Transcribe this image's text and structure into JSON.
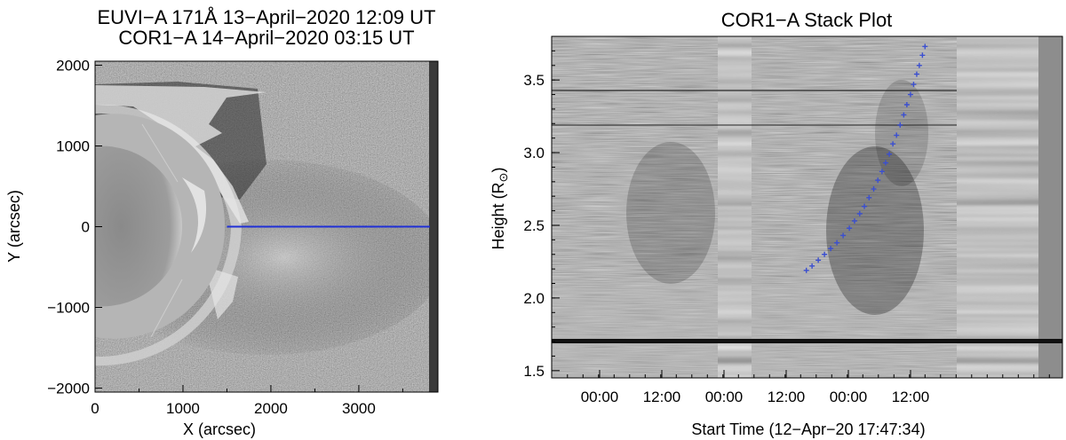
{
  "left_panel": {
    "title_line1": "EUVI−A 171Å 13−April−2020 12:09 UT",
    "title_line2": "COR1−A 14−April−2020 03:15 UT",
    "xlabel": "X (arcsec)",
    "ylabel": "Y (arcsec)",
    "xticks": [
      "0",
      "1000",
      "2000",
      "3000"
    ],
    "yticks": [
      "2000",
      "1000",
      "0",
      "−1000",
      "−2000"
    ],
    "slit_color": "#1f2fd6"
  },
  "right_panel": {
    "title": "COR1−A Stack Plot",
    "xlabel": "Start Time (12−Apr−20 17:47:34)",
    "ylabel": "Height (R",
    "ylabel_symbol": "⊙",
    "ylabel_close": ")",
    "xticks": [
      "00:00",
      "12:00",
      "00:00",
      "12:00",
      "00:00",
      "12:00"
    ],
    "yticks": [
      "3.5",
      "3.0",
      "2.5",
      "2.0",
      "1.5"
    ],
    "track_color": "#3b4fd0"
  },
  "chart_data": [
    {
      "type": "heatmap",
      "title": "EUVI−A 171Å 13−April−2020 12:09 UT / COR1−A 14−April−2020 03:15 UT",
      "xlabel": "X (arcsec)",
      "ylabel": "Y (arcsec)",
      "xlim": [
        0,
        3900
      ],
      "ylim": [
        -2050,
        2050
      ],
      "slit": {
        "x": [
          1500,
          3900
        ],
        "y": [
          0,
          0
        ]
      }
    },
    {
      "type": "scatter",
      "title": "COR1−A Stack Plot",
      "xlabel": "Start Time (12−Apr−20 17:47:34)",
      "ylabel": "Height (R⊙)",
      "x_hours_since_start": [
        46.1,
        47.2,
        48.4,
        49.6,
        50.8,
        52.0,
        53.2,
        54.4,
        55.4,
        56.4,
        57.3,
        58.2,
        59.1,
        59.9,
        60.7,
        61.4,
        62.1,
        62.8,
        63.5,
        64.2,
        64.9,
        65.5,
        66.2,
        66.8,
        67.4,
        67.9,
        68.5,
        69.0
      ],
      "y": [
        2.19,
        2.22,
        2.26,
        2.3,
        2.34,
        2.38,
        2.43,
        2.48,
        2.53,
        2.58,
        2.63,
        2.69,
        2.75,
        2.81,
        2.87,
        2.93,
        2.99,
        3.06,
        3.12,
        3.19,
        3.26,
        3.33,
        3.4,
        3.47,
        3.54,
        3.6,
        3.67,
        3.73
      ],
      "ylim": [
        1.45,
        3.8
      ]
    }
  ]
}
